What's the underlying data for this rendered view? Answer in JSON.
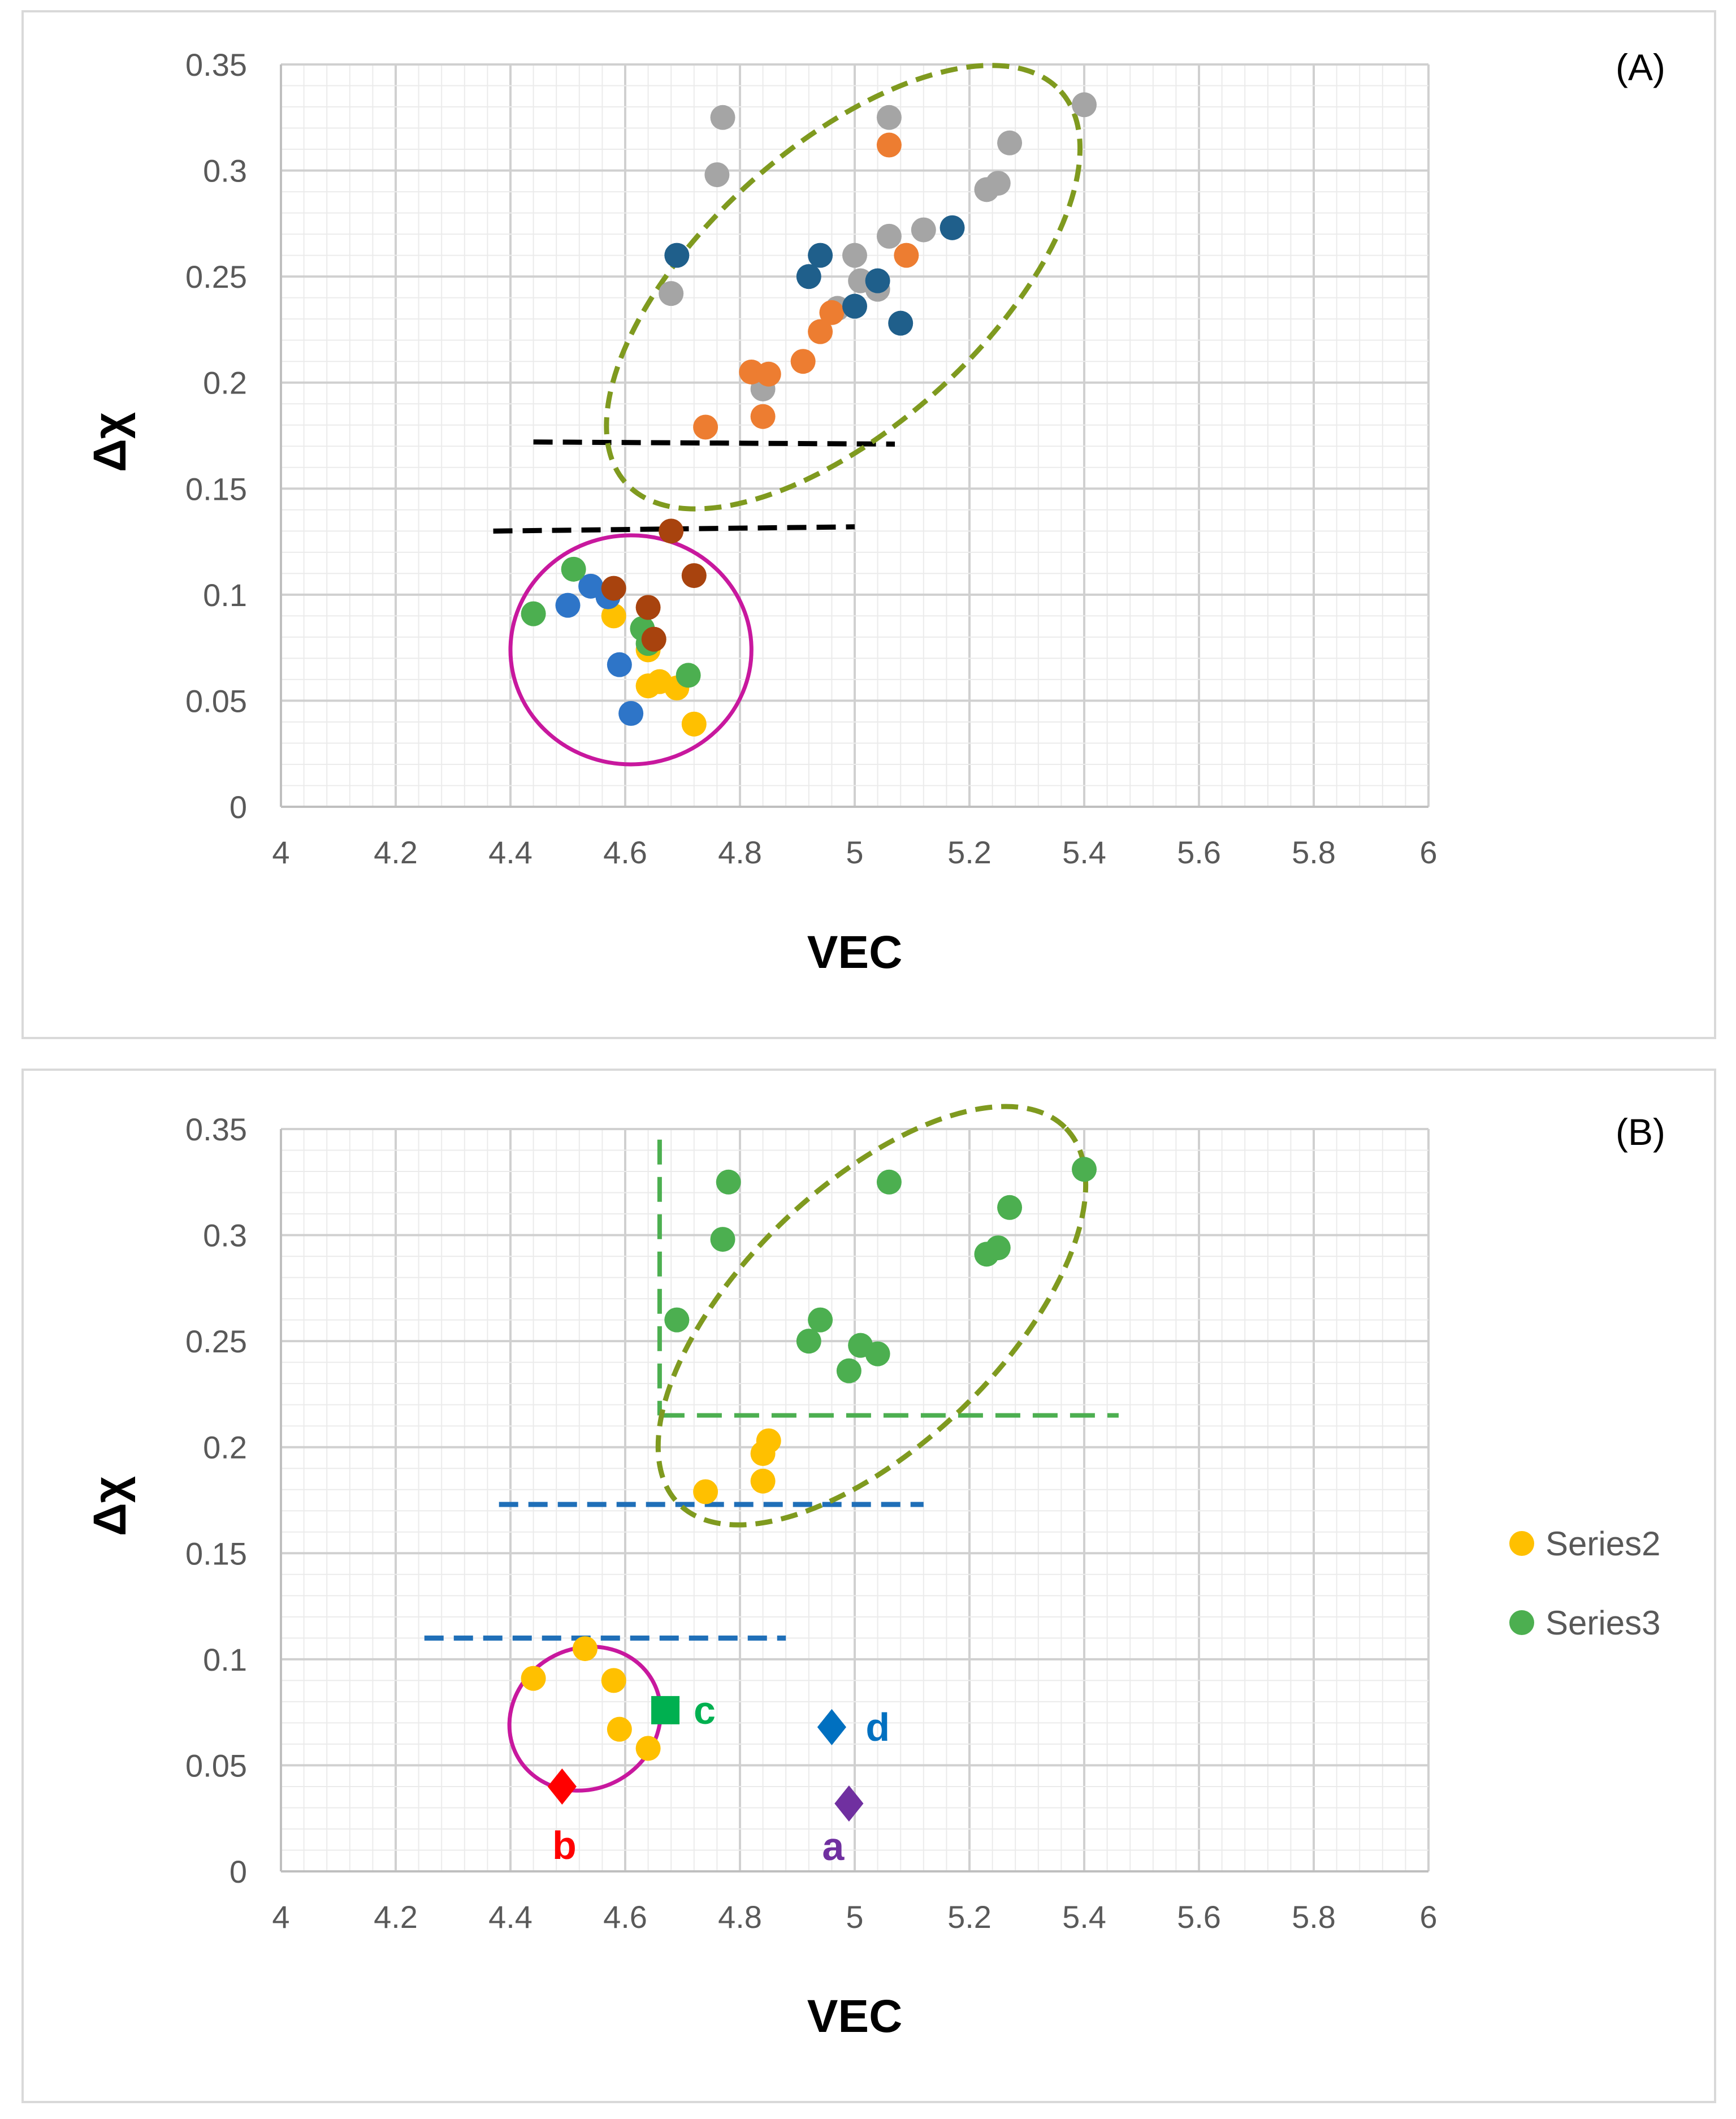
{
  "chart_data": [
    {
      "type": "scatter",
      "panel_label": "(A)",
      "xlabel": "VEC",
      "ylabel": "Δχ",
      "xlim": [
        4,
        6
      ],
      "ylim": [
        0,
        0.35
      ],
      "x_ticks": [
        "4",
        "4.2",
        "4.4",
        "4.6",
        "4.8",
        "5",
        "5.2",
        "5.4",
        "5.6",
        "5.8",
        "6"
      ],
      "y_ticks": [
        "0",
        "0.05",
        "0.1",
        "0.15",
        "0.2",
        "0.25",
        "0.3",
        "0.35"
      ],
      "grid": true,
      "series": [
        {
          "name": "gray",
          "color": "#a5a5a5",
          "points": [
            [
              4.77,
              0.325
            ],
            [
              4.76,
              0.298
            ],
            [
              4.68,
              0.242
            ],
            [
              4.84,
              0.197
            ],
            [
              5.06,
              0.325
            ],
            [
              5.0,
              0.26
            ],
            [
              5.01,
              0.248
            ],
            [
              5.04,
              0.244
            ],
            [
              4.97,
              0.235
            ],
            [
              5.06,
              0.269
            ],
            [
              5.12,
              0.272
            ],
            [
              5.23,
              0.291
            ],
            [
              5.25,
              0.294
            ],
            [
              5.27,
              0.313
            ],
            [
              5.4,
              0.331
            ]
          ]
        },
        {
          "name": "orange",
          "color": "#ed7d31",
          "points": [
            [
              4.74,
              0.179
            ],
            [
              4.84,
              0.184
            ],
            [
              4.82,
              0.205
            ],
            [
              4.85,
              0.204
            ],
            [
              4.91,
              0.21
            ],
            [
              4.94,
              0.224
            ],
            [
              4.96,
              0.233
            ],
            [
              5.06,
              0.312
            ],
            [
              5.09,
              0.26
            ]
          ]
        },
        {
          "name": "navy",
          "color": "#1f5f8b",
          "points": [
            [
              4.69,
              0.26
            ],
            [
              4.92,
              0.25
            ],
            [
              4.94,
              0.26
            ],
            [
              5.0,
              0.236
            ],
            [
              5.04,
              0.248
            ],
            [
              5.08,
              0.228
            ],
            [
              5.17,
              0.273
            ]
          ]
        },
        {
          "name": "yellow",
          "color": "#ffc000",
          "points": [
            [
              4.58,
              0.09
            ],
            [
              4.64,
              0.074
            ],
            [
              4.64,
              0.057
            ],
            [
              4.66,
              0.059
            ],
            [
              4.69,
              0.056
            ],
            [
              4.72,
              0.039
            ]
          ]
        },
        {
          "name": "blue",
          "color": "#2e75c8",
          "points": [
            [
              4.5,
              0.095
            ],
            [
              4.54,
              0.104
            ],
            [
              4.57,
              0.099
            ],
            [
              4.59,
              0.067
            ],
            [
              4.61,
              0.044
            ]
          ]
        },
        {
          "name": "green",
          "color": "#4caf50",
          "points": [
            [
              4.44,
              0.091
            ],
            [
              4.51,
              0.112
            ],
            [
              4.63,
              0.084
            ],
            [
              4.64,
              0.077
            ],
            [
              4.71,
              0.062
            ]
          ]
        },
        {
          "name": "brown",
          "color": "#a8430e",
          "points": [
            [
              4.58,
              0.103
            ],
            [
              4.64,
              0.094
            ],
            [
              4.65,
              0.079
            ],
            [
              4.68,
              0.13
            ],
            [
              4.72,
              0.109
            ]
          ]
        }
      ],
      "annotations": {
        "cluster_high": {
          "kind": "ellipse",
          "color": "#7f9a1f",
          "style": "dashed",
          "center": [
            4.98,
            0.245
          ],
          "rx": 0.51,
          "ry": 0.066,
          "rotation_deg": -42
        },
        "cluster_low": {
          "kind": "ellipse",
          "color": "#c8189e",
          "style": "solid",
          "center": [
            4.61,
            0.074
          ],
          "rx": 0.21,
          "ry": 0.054,
          "rotation_deg": 0
        },
        "threshold_lines": [
          {
            "color": "#000000",
            "style": "dashed",
            "x": [
              4.44,
              5.07
            ],
            "y": [
              0.172,
              0.171
            ]
          },
          {
            "color": "#000000",
            "style": "dashed",
            "x": [
              4.37,
              5.0
            ],
            "y": [
              0.13,
              0.132
            ]
          }
        ]
      }
    },
    {
      "type": "scatter",
      "panel_label": "(B)",
      "xlabel": "VEC",
      "ylabel": "Δχ",
      "xlim": [
        4,
        6
      ],
      "ylim": [
        0,
        0.35
      ],
      "x_ticks": [
        "4",
        "4.2",
        "4.4",
        "4.6",
        "4.8",
        "5",
        "5.2",
        "5.4",
        "5.6",
        "5.8",
        "6"
      ],
      "y_ticks": [
        "0",
        "0.05",
        "0.1",
        "0.15",
        "0.2",
        "0.25",
        "0.3",
        "0.35"
      ],
      "grid": true,
      "legend": {
        "position": "right",
        "entries": [
          {
            "name": "Series2",
            "color": "#ffc000"
          },
          {
            "name": "Series3",
            "color": "#4caf50"
          }
        ]
      },
      "series": [
        {
          "name": "Series2",
          "color": "#ffc000",
          "points": [
            [
              4.44,
              0.091
            ],
            [
              4.53,
              0.105
            ],
            [
              4.58,
              0.09
            ],
            [
              4.59,
              0.067
            ],
            [
              4.64,
              0.058
            ],
            [
              4.74,
              0.179
            ],
            [
              4.84,
              0.184
            ],
            [
              4.84,
              0.197
            ],
            [
              4.85,
              0.203
            ]
          ]
        },
        {
          "name": "Series3",
          "color": "#4caf50",
          "points": [
            [
              4.69,
              0.26
            ],
            [
              4.77,
              0.298
            ],
            [
              4.78,
              0.325
            ],
            [
              4.92,
              0.25
            ],
            [
              4.94,
              0.26
            ],
            [
              4.99,
              0.236
            ],
            [
              5.01,
              0.248
            ],
            [
              5.04,
              0.244
            ],
            [
              5.06,
              0.325
            ],
            [
              5.23,
              0.291
            ],
            [
              5.25,
              0.294
            ],
            [
              5.27,
              0.313
            ],
            [
              5.4,
              0.331
            ]
          ]
        }
      ],
      "special_markers": [
        {
          "label": "a",
          "shape": "diamond",
          "color": "#7030a0",
          "x": 4.99,
          "y": 0.032
        },
        {
          "label": "b",
          "shape": "diamond",
          "color": "#ff0000",
          "x": 4.49,
          "y": 0.04
        },
        {
          "label": "c",
          "shape": "square",
          "color": "#00b050",
          "x": 4.67,
          "y": 0.076
        },
        {
          "label": "d",
          "shape": "diamond",
          "color": "#0070c0",
          "x": 4.96,
          "y": 0.068
        }
      ],
      "annotations": {
        "cluster_high": {
          "kind": "ellipse",
          "color": "#7f9a1f",
          "style": "dashed",
          "center": [
            5.03,
            0.262
          ],
          "rx": 0.47,
          "ry": 0.061,
          "rotation_deg": -44
        },
        "cluster_low": {
          "kind": "ellipse",
          "color": "#c8189e",
          "style": "solid",
          "center": [
            4.53,
            0.072
          ],
          "rx": 0.135,
          "ry": 0.033,
          "rotation_deg": -30
        },
        "threshold_lines": [
          {
            "color": "#1f6fb8",
            "style": "dashed",
            "x": [
              4.38,
              5.12
            ],
            "y": [
              0.173,
              0.173
            ]
          },
          {
            "color": "#1f6fb8",
            "style": "dashed",
            "x": [
              4.25,
              4.88
            ],
            "y": [
              0.11,
              0.11
            ]
          }
        ],
        "region_lines": [
          {
            "color": "#4caf50",
            "style": "dashed",
            "x": [
              4.66,
              4.66
            ],
            "y": [
              0.345,
              0.215
            ]
          },
          {
            "color": "#4caf50",
            "style": "dashed",
            "x": [
              4.66,
              5.46
            ],
            "y": [
              0.215,
              0.215
            ]
          }
        ]
      }
    }
  ]
}
